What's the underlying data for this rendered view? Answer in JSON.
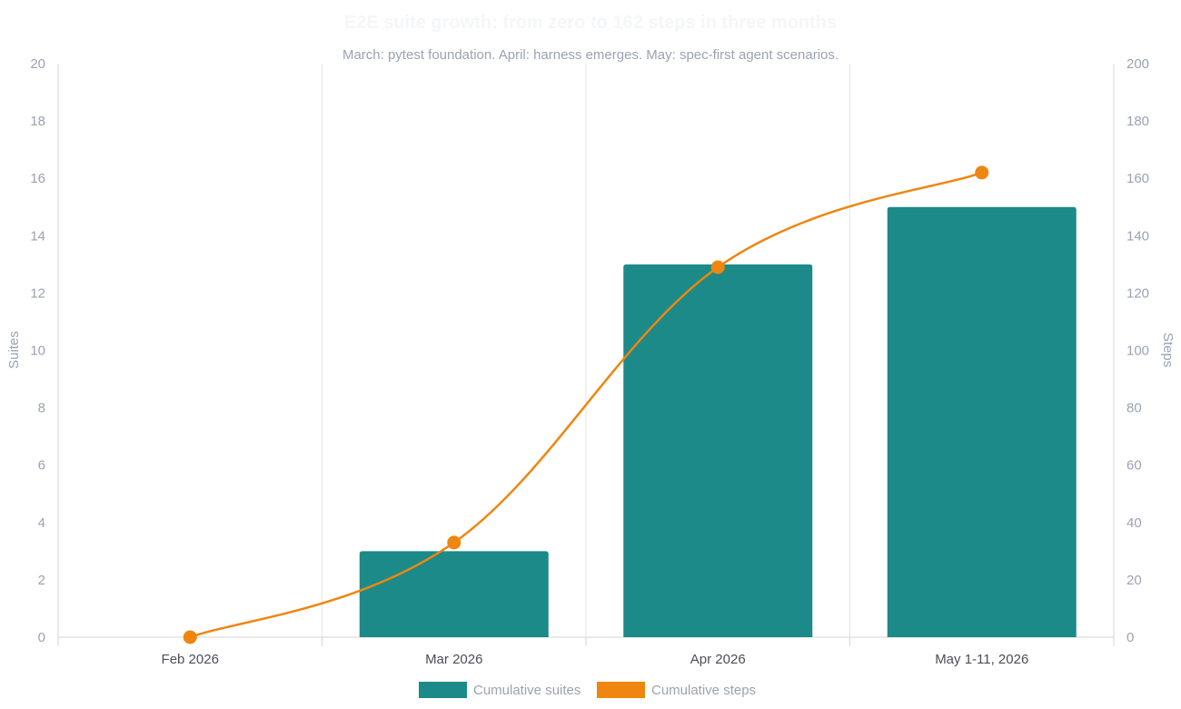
{
  "chart_data": {
    "type": "bar",
    "title": "E2E suite growth: from zero to 162 steps in three months",
    "subtitle": "March: pytest foundation. April: harness emerges. May: spec-first agent scenarios.",
    "categories": [
      "Feb 2026",
      "Mar 2026",
      "Apr 2026",
      "May 1-11, 2026"
    ],
    "y_left": {
      "label": "Suites",
      "ylim": [
        0,
        20
      ],
      "ticks": [
        0,
        2,
        4,
        6,
        8,
        10,
        12,
        14,
        16,
        18,
        20
      ]
    },
    "y_right": {
      "label": "Steps",
      "ylim": [
        0,
        200
      ],
      "ticks": [
        0,
        20,
        40,
        60,
        80,
        100,
        120,
        140,
        160,
        180,
        200
      ]
    },
    "series": [
      {
        "name": "Cumulative suites",
        "type": "bar",
        "axis": "left",
        "color": "#1c8a88",
        "values": [
          0,
          3,
          13,
          15
        ]
      },
      {
        "name": "Cumulative steps",
        "type": "line",
        "axis": "right",
        "color": "#ee8610",
        "values": [
          0,
          33,
          129,
          162
        ]
      }
    ],
    "grid": "vertical category separators",
    "legend": "bottom-center"
  }
}
